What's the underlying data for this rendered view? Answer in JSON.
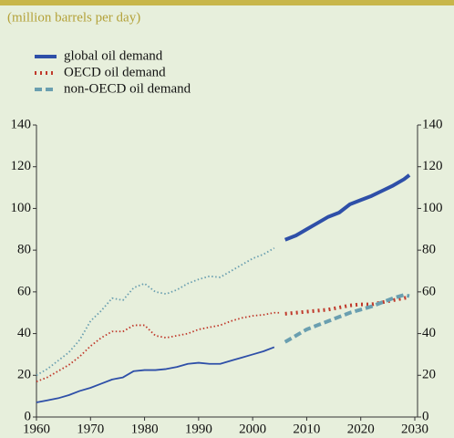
{
  "chart_data": {
    "type": "line",
    "subtitle": "(million barrels per day)",
    "x": [
      1960,
      1962,
      1964,
      1966,
      1968,
      1970,
      1972,
      1974,
      1976,
      1978,
      1980,
      1982,
      1984,
      1986,
      1988,
      1990,
      1992,
      1994,
      1996,
      1998,
      2000,
      2002,
      2004,
      2005,
      2006,
      2008,
      2010,
      2012,
      2014,
      2016,
      2018,
      2020,
      2022,
      2024,
      2026,
      2028,
      2029
    ],
    "series": [
      {
        "name": "global oil demand",
        "color": "#2e4fa8",
        "style": "solid",
        "values": [
          7,
          8,
          9,
          10.5,
          12.5,
          14,
          16,
          18,
          19,
          22,
          22.5,
          22.5,
          23,
          24,
          25.5,
          26,
          25.5,
          25.5,
          27,
          28.5,
          30,
          31.5,
          33.5,
          null,
          85,
          87,
          90,
          93,
          96,
          98,
          102,
          104,
          106,
          108.5,
          111,
          114,
          116
        ]
      },
      {
        "name": "OECD oil demand",
        "color": "#c0392b",
        "style": "dotted",
        "values": [
          17,
          19,
          22,
          25,
          29,
          34,
          38,
          41,
          41,
          44,
          44,
          39,
          38,
          39,
          40,
          42,
          43,
          44,
          46,
          47.5,
          48.5,
          49,
          50,
          50,
          49.5,
          50,
          50.5,
          51,
          51.5,
          52.5,
          53.5,
          54,
          54,
          55,
          56,
          57,
          57.5
        ]
      },
      {
        "name": "non-OECD oil demand",
        "color": "#6a9fb0",
        "style": "dashed",
        "values": [
          20,
          23,
          27,
          31,
          37,
          46,
          51,
          57,
          56,
          62,
          64,
          60,
          59,
          61,
          64,
          66,
          67.5,
          67,
          70,
          73,
          76,
          78,
          81,
          null,
          36,
          39,
          42,
          44,
          46,
          48,
          50,
          51.5,
          53,
          55,
          57,
          58.5,
          58
        ]
      }
    ],
    "projection_from": 2006,
    "xlim": [
      1960,
      2030
    ],
    "xticks": [
      1960,
      1970,
      1980,
      1990,
      2000,
      2010,
      2020,
      2030
    ],
    "ylim": [
      0,
      140
    ],
    "yticks": [
      0,
      20,
      40,
      60,
      80,
      100,
      120,
      140
    ],
    "y2lim": [
      0,
      140
    ],
    "y2ticks": [
      0,
      20,
      40,
      60,
      80,
      100,
      120,
      140
    ]
  }
}
